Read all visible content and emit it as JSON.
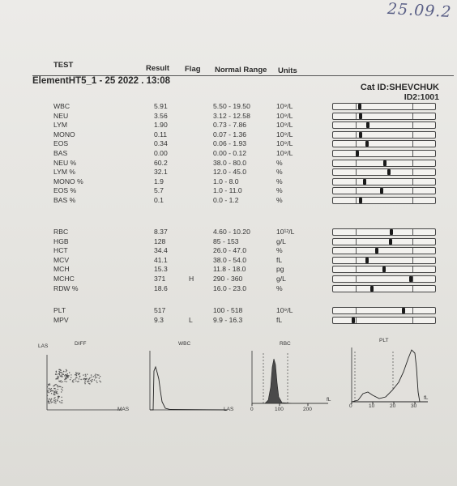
{
  "handwritten_date": "25.09.2",
  "header": {
    "test": "TEST",
    "result": "Result",
    "flag": "Flag",
    "range": "Normal Range",
    "units": "Units"
  },
  "sample": "ElementHT5_1 - 25  2022 . 13:08",
  "cat_id": "Cat ID:SHEVCHUK",
  "id2": "ID2:1001",
  "groups": [
    {
      "rows": [
        {
          "name": "WBC",
          "result": "5.91",
          "flag": "",
          "range": "5.50 - 19.50",
          "unit": "10⁹/L",
          "pos": 0.26
        },
        {
          "name": "NEU",
          "result": "3.56",
          "flag": "",
          "range": "3.12 - 12.58",
          "unit": "10⁹/L",
          "pos": 0.27
        },
        {
          "name": "LYM",
          "result": "1.90",
          "flag": "",
          "range": "0.73 - 7.86",
          "unit": "10⁹/L",
          "pos": 0.34
        },
        {
          "name": "MONO",
          "result": "0.11",
          "flag": "",
          "range": "0.07 - 1.36",
          "unit": "10⁹/L",
          "pos": 0.27
        },
        {
          "name": "EOS",
          "result": "0.34",
          "flag": "",
          "range": "0.06 - 1.93",
          "unit": "10⁹/L",
          "pos": 0.33
        },
        {
          "name": "BAS",
          "result": "0.00",
          "flag": "",
          "range": "0.00 - 0.12",
          "unit": "10⁹/L",
          "pos": 0.24
        },
        {
          "name": "NEU %",
          "result": "60.2",
          "flag": "",
          "range": "38.0 - 80.0",
          "unit": "%",
          "pos": 0.51
        },
        {
          "name": "LYM %",
          "result": "32.1",
          "flag": "",
          "range": "12.0 - 45.0",
          "unit": "%",
          "pos": 0.55
        },
        {
          "name": "MONO %",
          "result": "1.9",
          "flag": "",
          "range": "1.0 - 8.0",
          "unit": "%",
          "pos": 0.31
        },
        {
          "name": "EOS %",
          "result": "5.7",
          "flag": "",
          "range": "1.0 - 11.0",
          "unit": "%",
          "pos": 0.48
        },
        {
          "name": "BAS %",
          "result": "0.1",
          "flag": "",
          "range": "0.0 - 1.2",
          "unit": "%",
          "pos": 0.27
        }
      ]
    },
    {
      "rows": [
        {
          "name": "RBC",
          "result": "8.37",
          "flag": "",
          "range": "4.60 - 10.20",
          "unit": "10¹²/L",
          "pos": 0.57
        },
        {
          "name": "HGB",
          "result": "128",
          "flag": "",
          "range": "85 - 153",
          "unit": "g/L",
          "pos": 0.56
        },
        {
          "name": "HCT",
          "result": "34.4",
          "flag": "",
          "range": "26.0 - 47.0",
          "unit": "%",
          "pos": 0.43
        },
        {
          "name": "MCV",
          "result": "41.1",
          "flag": "",
          "range": "38.0 - 54.0",
          "unit": "fL",
          "pos": 0.33
        },
        {
          "name": "MCH",
          "result": "15.3",
          "flag": "",
          "range": "11.8 - 18.0",
          "unit": "pg",
          "pos": 0.5
        },
        {
          "name": "MCHC",
          "result": "371",
          "flag": "H",
          "range": "290 - 360",
          "unit": "g/L",
          "pos": 0.76
        },
        {
          "name": "RDW %",
          "result": "18.6",
          "flag": "",
          "range": "16.0 - 23.0",
          "unit": "%",
          "pos": 0.38
        }
      ]
    },
    {
      "rows": [
        {
          "name": "PLT",
          "result": "517",
          "flag": "",
          "range": "100 - 518",
          "unit": "10⁹/L",
          "pos": 0.69
        },
        {
          "name": "MPV",
          "result": "9.3",
          "flag": "L",
          "range": "9.9 - 16.3",
          "unit": "fL",
          "pos": 0.2
        }
      ]
    }
  ],
  "histograms": {
    "diff": {
      "title": "DIFF",
      "y_label": "LAS",
      "x_label": "MAS"
    },
    "wbc": {
      "title": "WBC",
      "x_label": "LAS"
    },
    "rbc": {
      "title": "RBC",
      "unit": "fL",
      "ticks": [
        "0",
        "100",
        "200"
      ]
    },
    "plt": {
      "title": "PLT",
      "unit": "fL",
      "ticks": [
        "0",
        "10",
        "20",
        "30"
      ]
    }
  }
}
